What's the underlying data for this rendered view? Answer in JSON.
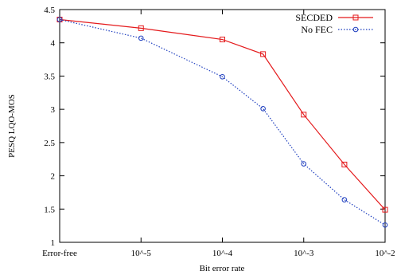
{
  "chart_data": {
    "type": "line",
    "title": "",
    "xlabel": "Bit error rate",
    "ylabel": "PESQ LQO-MOS",
    "x_axis": {
      "scale": "log",
      "x_min": -6,
      "x_max": -2,
      "ticks": [
        {
          "x": -6,
          "label": "Error-free"
        },
        {
          "x": -5,
          "label": "10^-5"
        },
        {
          "x": -4,
          "label": "10^-4"
        },
        {
          "x": -3,
          "label": "10^-3"
        },
        {
          "x": -2,
          "label": "10^-2"
        }
      ]
    },
    "y_axis": {
      "ylim": [
        1,
        4.5
      ],
      "ticks": [
        1,
        1.5,
        2,
        2.5,
        3,
        3.5,
        4,
        4.5
      ]
    },
    "grid": false,
    "legend_position": "top-right",
    "series": [
      {
        "name": "SECDED",
        "color": "#e41a1c",
        "line_style": "solid",
        "marker": "square",
        "x": [
          -6,
          -5,
          -4,
          -3.5,
          -3,
          -2.5,
          -2
        ],
        "y": [
          4.35,
          4.22,
          4.05,
          3.83,
          2.92,
          2.17,
          1.49
        ]
      },
      {
        "name": "No FEC",
        "color": "#1f3fbf",
        "line_style": "dotted",
        "marker": "circle",
        "x": [
          -6,
          -5,
          -4,
          -3.5,
          -3,
          -2.5,
          -2
        ],
        "y": [
          4.35,
          4.07,
          3.49,
          3.01,
          2.18,
          1.64,
          1.26
        ]
      }
    ]
  }
}
